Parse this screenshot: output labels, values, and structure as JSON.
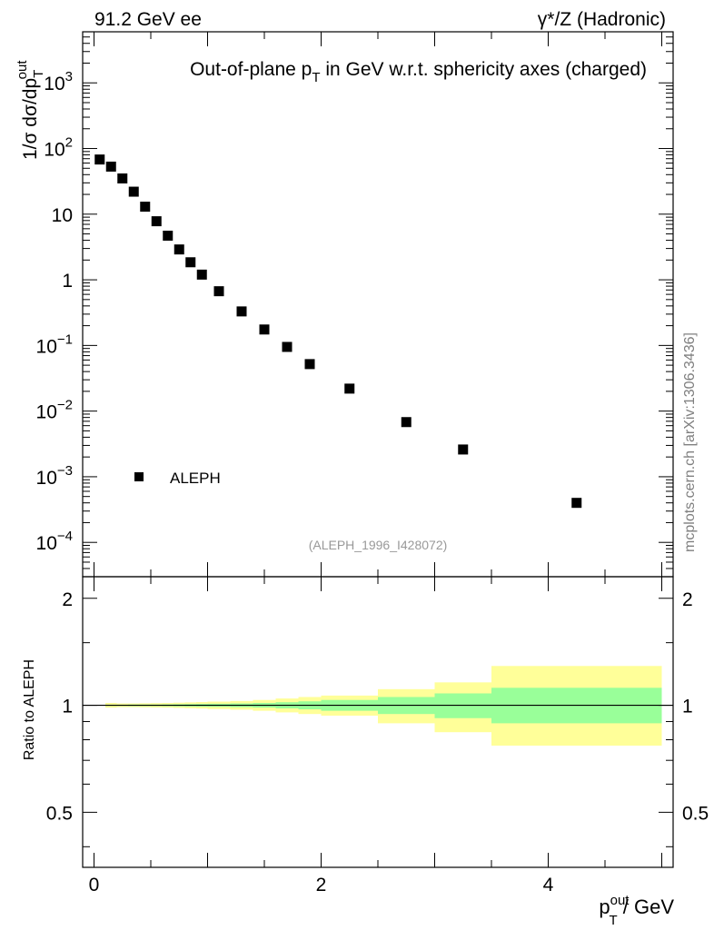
{
  "header": {
    "left_text": "91.2 GeV ee",
    "right_text": "γ*/Z (Hadronic)"
  },
  "side_label": "mcplots.cern.ch [arXiv:1306.3436]",
  "chart_data": {
    "type": "scatter",
    "title": {
      "main": "Out-of-plane p",
      "sub": "T",
      "rest": " in GeV w.r.t. sphericity axes (charged)"
    },
    "analysis_tag": "(ALEPH_1996_I428072)",
    "ylabel": {
      "prefix": "1/σ  dσ/dp",
      "sub": "T",
      "sup": "out"
    },
    "xlabel": {
      "main": "p",
      "sub": "T",
      "sup": "out",
      "rest": " / GeV"
    },
    "xlim": [
      -0.1,
      5.1
    ],
    "ylim_top": [
      3e-05,
      6000
    ],
    "yscale_top": "log",
    "top_y_ticks": [
      {
        "value": 0.0001,
        "base": "10",
        "exp": "−4"
      },
      {
        "value": 0.001,
        "base": "10",
        "exp": "−3"
      },
      {
        "value": 0.01,
        "base": "10",
        "exp": "−2"
      },
      {
        "value": 0.1,
        "base": "10",
        "exp": "−1"
      },
      {
        "value": 1,
        "base": "1",
        "exp": ""
      },
      {
        "value": 10,
        "base": "10",
        "exp": ""
      },
      {
        "value": 100,
        "base": "10",
        "exp": "2"
      },
      {
        "value": 1000,
        "base": "10",
        "exp": "3"
      }
    ],
    "x_ticks": [
      {
        "value": 0,
        "label": "0"
      },
      {
        "value": 2,
        "label": "2"
      },
      {
        "value": 4,
        "label": "4"
      }
    ],
    "series": [
      {
        "name": "ALEPH",
        "marker": "square",
        "color": "#000000",
        "x": [
          0.05,
          0.15,
          0.25,
          0.35,
          0.45,
          0.55,
          0.65,
          0.75,
          0.85,
          0.95,
          1.1,
          1.3,
          1.5,
          1.7,
          1.9,
          2.25,
          2.75,
          3.25,
          4.25
        ],
        "y": [
          68,
          53,
          35,
          22,
          13,
          7.8,
          4.7,
          2.9,
          1.85,
          1.2,
          0.67,
          0.33,
          0.175,
          0.095,
          0.052,
          0.022,
          0.0068,
          0.0026,
          0.0004
        ]
      }
    ],
    "legend": {
      "placement": "bottom-left",
      "entries": [
        "ALEPH"
      ]
    },
    "ratio": {
      "ylabel": "Ratio to ALEPH",
      "ylim": [
        0.35,
        2.3
      ],
      "yscale": "log",
      "y_ticks": [
        {
          "value": 0.5,
          "label": "0.5"
        },
        {
          "value": 1,
          "label": "1"
        },
        {
          "value": 2,
          "label": "2"
        }
      ],
      "reference": 1,
      "band_bins": [
        {
          "x0": 0.1,
          "x1": 0.2,
          "inner": [
            0.996,
            1.004
          ],
          "outer": [
            0.985,
            1.015
          ]
        },
        {
          "x0": 0.2,
          "x1": 0.3,
          "inner": [
            0.996,
            1.004
          ],
          "outer": [
            0.988,
            1.012
          ]
        },
        {
          "x0": 0.3,
          "x1": 0.4,
          "inner": [
            0.995,
            1.005
          ],
          "outer": [
            0.988,
            1.012
          ]
        },
        {
          "x0": 0.4,
          "x1": 0.5,
          "inner": [
            0.995,
            1.005
          ],
          "outer": [
            0.987,
            1.013
          ]
        },
        {
          "x0": 0.5,
          "x1": 0.6,
          "inner": [
            0.995,
            1.005
          ],
          "outer": [
            0.986,
            1.014
          ]
        },
        {
          "x0": 0.6,
          "x1": 0.7,
          "inner": [
            0.994,
            1.006
          ],
          "outer": [
            0.985,
            1.015
          ]
        },
        {
          "x0": 0.7,
          "x1": 0.8,
          "inner": [
            0.993,
            1.007
          ],
          "outer": [
            0.983,
            1.017
          ]
        },
        {
          "x0": 0.8,
          "x1": 0.9,
          "inner": [
            0.992,
            1.008
          ],
          "outer": [
            0.981,
            1.019
          ]
        },
        {
          "x0": 0.9,
          "x1": 1.0,
          "inner": [
            0.991,
            1.009
          ],
          "outer": [
            0.979,
            1.021
          ]
        },
        {
          "x0": 1.0,
          "x1": 1.2,
          "inner": [
            0.99,
            1.01
          ],
          "outer": [
            0.976,
            1.024
          ]
        },
        {
          "x0": 1.2,
          "x1": 1.4,
          "inner": [
            0.988,
            1.012
          ],
          "outer": [
            0.972,
            1.028
          ]
        },
        {
          "x0": 1.4,
          "x1": 1.6,
          "inner": [
            0.985,
            1.015
          ],
          "outer": [
            0.965,
            1.035
          ]
        },
        {
          "x0": 1.6,
          "x1": 1.8,
          "inner": [
            0.98,
            1.02
          ],
          "outer": [
            0.955,
            1.045
          ]
        },
        {
          "x0": 1.8,
          "x1": 2.0,
          "inner": [
            0.974,
            1.026
          ],
          "outer": [
            0.945,
            1.055
          ]
        },
        {
          "x0": 2.0,
          "x1": 2.5,
          "inner": [
            0.965,
            1.035
          ],
          "outer": [
            0.935,
            1.065
          ]
        },
        {
          "x0": 2.5,
          "x1": 3.0,
          "inner": [
            0.945,
            1.055
          ],
          "outer": [
            0.89,
            1.11
          ]
        },
        {
          "x0": 3.0,
          "x1": 3.5,
          "inner": [
            0.92,
            1.08
          ],
          "outer": [
            0.84,
            1.16
          ]
        },
        {
          "x0": 3.5,
          "x1": 5.0,
          "inner": [
            0.89,
            1.12
          ],
          "outer": [
            0.77,
            1.29
          ]
        }
      ],
      "colors": {
        "inner": "#99ff99",
        "outer": "#ffff99",
        "line": "#000000"
      }
    }
  }
}
